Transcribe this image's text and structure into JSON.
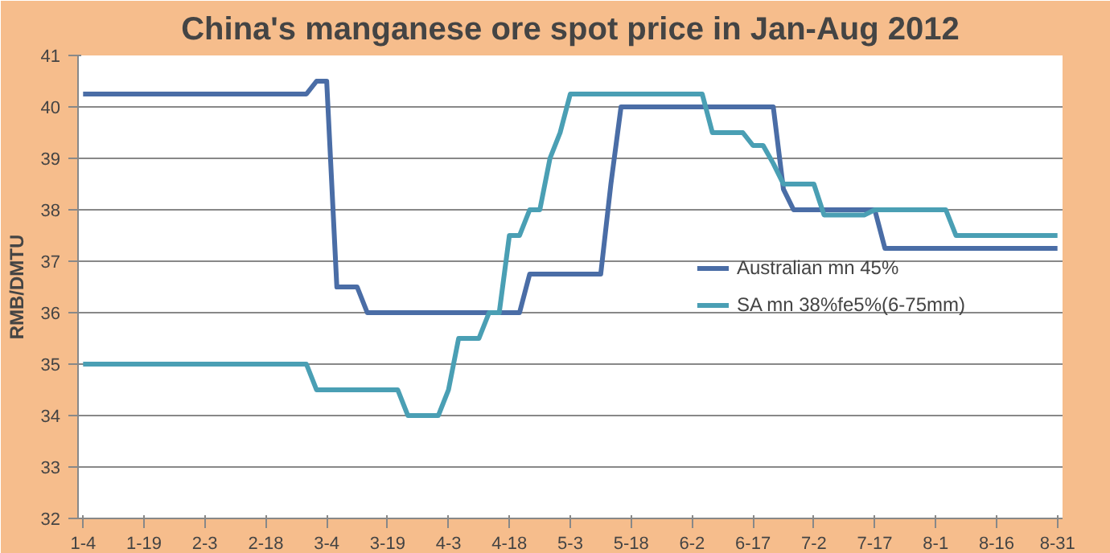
{
  "chart_data": {
    "type": "line",
    "title": "China's manganese ore spot price in Jan-Aug 2012",
    "ylabel": "RMB/DMTU",
    "categories": [
      "1-4",
      null,
      null,
      null,
      null,
      null,
      "1-19",
      null,
      null,
      null,
      null,
      null,
      "2-3",
      null,
      null,
      null,
      null,
      null,
      "2-18",
      null,
      null,
      null,
      null,
      null,
      "3-4",
      null,
      null,
      null,
      null,
      null,
      "3-19",
      null,
      null,
      null,
      null,
      null,
      "4-3",
      null,
      null,
      null,
      null,
      null,
      "4-18",
      null,
      null,
      null,
      null,
      null,
      "5-3",
      null,
      null,
      null,
      null,
      null,
      "5-18",
      null,
      null,
      null,
      null,
      null,
      "6-2",
      null,
      null,
      null,
      null,
      null,
      "6-17",
      null,
      null,
      null,
      null,
      null,
      "7-2",
      null,
      null,
      null,
      null,
      null,
      "7-17",
      null,
      null,
      null,
      null,
      null,
      "8-1",
      null,
      null,
      null,
      null,
      null,
      "8-16",
      null,
      null,
      null,
      null,
      null,
      "8-31"
    ],
    "series": [
      {
        "name": "Australian mn 45%",
        "color": "#4a6da6",
        "values": [
          40.25,
          40.25,
          40.25,
          40.25,
          40.25,
          40.25,
          40.25,
          40.25,
          40.25,
          40.25,
          40.25,
          40.25,
          40.25,
          40.25,
          40.25,
          40.25,
          40.25,
          40.25,
          40.25,
          40.25,
          40.25,
          40.25,
          40.25,
          40.5,
          40.5,
          36.5,
          36.5,
          36.5,
          36,
          36,
          36,
          36,
          36,
          36,
          36,
          36,
          36,
          36,
          36,
          36,
          36,
          36,
          36,
          36,
          36.75,
          36.75,
          36.75,
          36.75,
          36.75,
          36.75,
          36.75,
          36.75,
          38.5,
          40,
          40,
          40,
          40,
          40,
          40,
          40,
          40,
          40,
          40,
          40,
          40,
          40,
          40,
          40,
          40,
          38.4,
          38,
          38,
          38,
          38,
          38,
          38,
          38,
          38,
          38,
          37.25,
          37.25,
          37.25,
          37.25,
          37.25,
          37.25,
          37.25,
          37.25,
          37.25,
          37.25,
          37.25,
          37.25,
          37.25,
          37.25,
          37.25,
          37.25,
          37.25,
          37.25
        ]
      },
      {
        "name": "SA mn 38%fe5%(6-75mm)",
        "color": "#4a9fb4",
        "values": [
          35,
          35,
          35,
          35,
          35,
          35,
          35,
          35,
          35,
          35,
          35,
          35,
          35,
          35,
          35,
          35,
          35,
          35,
          35,
          35,
          35,
          35,
          35,
          34.5,
          34.5,
          34.5,
          34.5,
          34.5,
          34.5,
          34.5,
          34.5,
          34.5,
          34,
          34,
          34,
          34,
          34.5,
          35.5,
          35.5,
          35.5,
          36,
          36,
          37.5,
          37.5,
          38,
          38,
          39,
          39.5,
          40.25,
          40.25,
          40.25,
          40.25,
          40.25,
          40.25,
          40.25,
          40.25,
          40.25,
          40.25,
          40.25,
          40.25,
          40.25,
          40.25,
          39.5,
          39.5,
          39.5,
          39.5,
          39.25,
          39.25,
          38.9,
          38.5,
          38.5,
          38.5,
          38.5,
          37.9,
          37.9,
          37.9,
          37.9,
          37.9,
          38,
          38,
          38,
          38,
          38,
          38,
          38,
          38,
          37.5,
          37.5,
          37.5,
          37.5,
          37.5,
          37.5,
          37.5,
          37.5,
          37.5,
          37.5,
          37.5
        ]
      }
    ],
    "ylim": [
      32,
      41
    ],
    "yticks": [
      32,
      33,
      34,
      35,
      36,
      37,
      38,
      39,
      40,
      41
    ],
    "grid": "y",
    "legend": "right"
  }
}
